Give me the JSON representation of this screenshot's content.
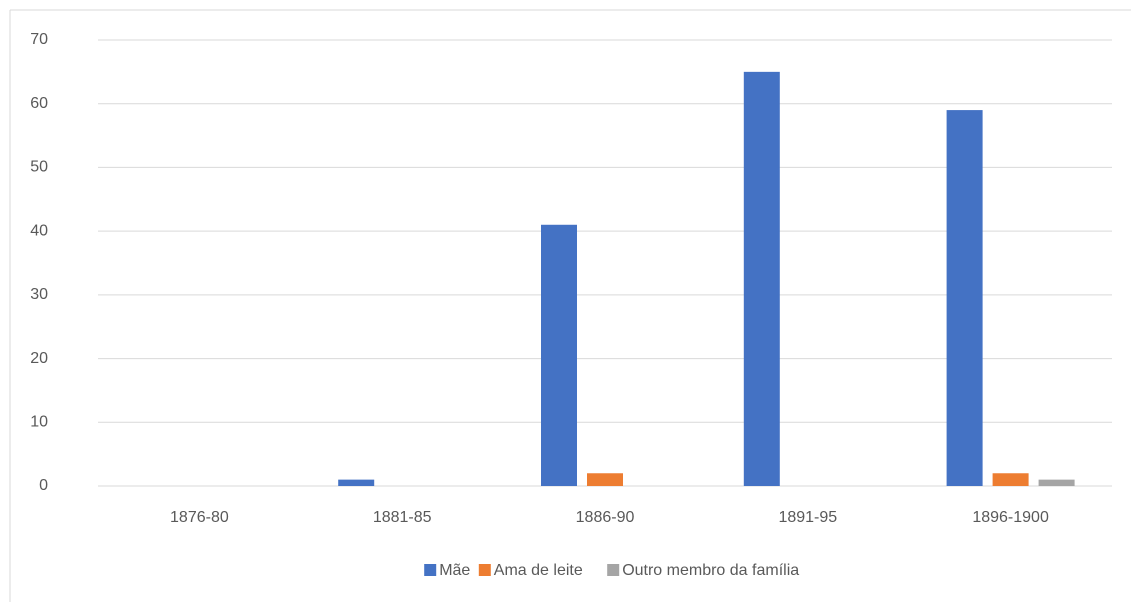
{
  "chart_data": {
    "type": "bar",
    "categories": [
      "1876-80",
      "1881-85",
      "1886-90",
      "1891-95",
      "1896-1900"
    ],
    "series": [
      {
        "name": "Mãe",
        "color": "#4472c4",
        "values": [
          0,
          1,
          41,
          65,
          59
        ]
      },
      {
        "name": "Ama de leite",
        "color": "#ed7d31",
        "values": [
          0,
          0,
          2,
          0,
          2
        ]
      },
      {
        "name": "Outro membro da família",
        "color": "#a5a5a5",
        "values": [
          0,
          0,
          0,
          0,
          1
        ]
      }
    ],
    "ylim": [
      0,
      70
    ],
    "yticks": [
      0,
      10,
      20,
      30,
      40,
      50,
      60,
      70
    ],
    "grid": true,
    "legend": "bottom"
  }
}
